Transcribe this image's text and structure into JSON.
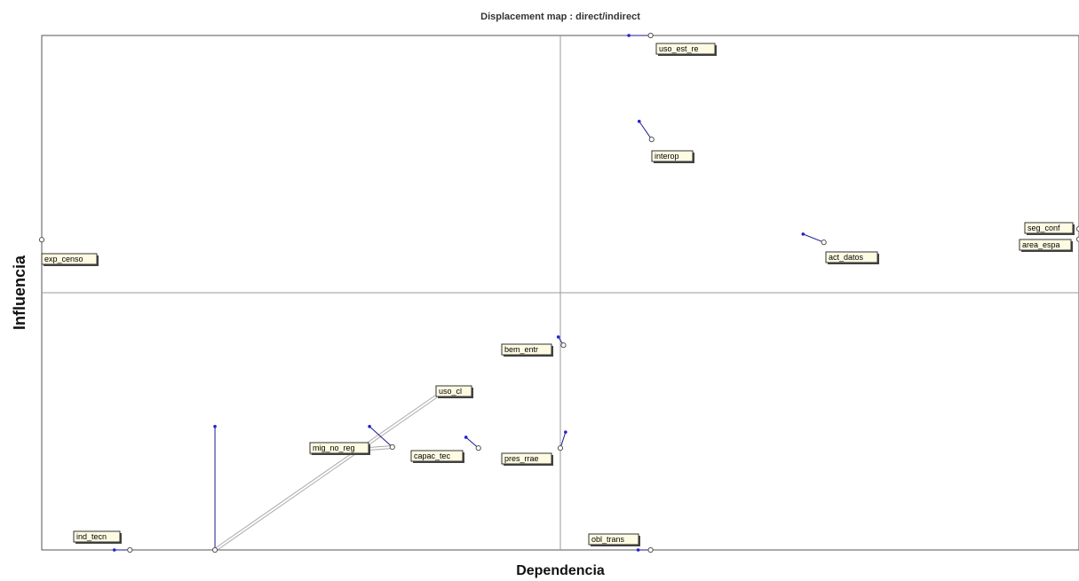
{
  "chart_data": {
    "type": "scatter",
    "title": "Displacement map :  direct/indirect",
    "xlabel": "Dependencia",
    "ylabel": "Influencia",
    "xlim": [
      0,
      1000
    ],
    "ylim": [
      0,
      1000
    ],
    "x_mean": 500,
    "y_mean": 500,
    "grid": false,
    "colors": {
      "axes": "#555555",
      "mean_lines": "#999999",
      "direct_point": "#1f1fd6",
      "indirect_point": "#555555",
      "label_bg": "#fffbe3",
      "label_border": "#333333",
      "leader": "#aaaaaa"
    },
    "points": [
      {
        "label": "uso_est_re",
        "direct": [
          566,
          1000
        ],
        "indirect": [
          587,
          1000
        ]
      },
      {
        "label": "interop",
        "direct": [
          576,
          833
        ],
        "indirect": [
          588,
          798
        ]
      },
      {
        "label": "seg_conf",
        "direct": [
          1000,
          624
        ],
        "indirect": [
          1000,
          624
        ]
      },
      {
        "label": "area_espa",
        "direct": [
          1000,
          604
        ],
        "indirect": [
          1000,
          604
        ]
      },
      {
        "label": "act_datos",
        "direct": [
          734,
          614
        ],
        "indirect": [
          754,
          598
        ]
      },
      {
        "label": "exp_censo",
        "direct": [
          0,
          603
        ],
        "indirect": [
          0,
          603
        ]
      },
      {
        "label": "bem_entr",
        "direct": [
          498,
          414
        ],
        "indirect": [
          503,
          398
        ]
      },
      {
        "label": "uso_cl",
        "direct": [
          167,
          240
        ],
        "indirect": [
          167,
          0
        ]
      },
      {
        "label": "mig_no_reg",
        "direct": [
          316,
          240
        ],
        "indirect": [
          338,
          200
        ]
      },
      {
        "label": "capac_tec",
        "direct": [
          409,
          219
        ],
        "indirect": [
          421,
          198
        ]
      },
      {
        "label": "pres_rrae",
        "direct": [
          505,
          229
        ],
        "indirect": [
          500,
          198
        ]
      },
      {
        "label": "ind_tecn",
        "direct": [
          70,
          0
        ],
        "indirect": [
          85,
          0
        ]
      },
      {
        "label": "obl_trans",
        "direct": [
          575,
          0
        ],
        "indirect": [
          587,
          0
        ]
      }
    ]
  }
}
